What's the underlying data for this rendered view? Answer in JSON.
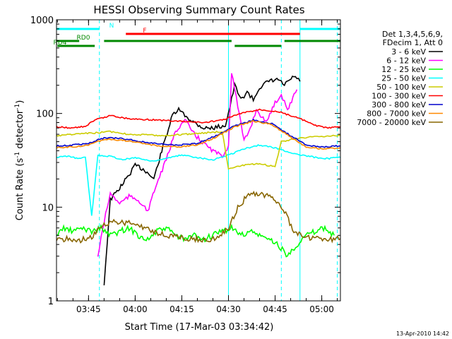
{
  "chart_data": {
    "type": "line",
    "title": "HESSI Observing Summary Count Rates",
    "xlabel": "Start Time (17-Mar-03 03:34:42)",
    "ylabel": "Count Rate (s",
    "ylabel_sup1": "-1",
    "ylabel_mid": " detector",
    "ylabel_sup2": "-1",
    "ylabel_end": ")",
    "y_scale": "log",
    "ylim": [
      1,
      1000
    ],
    "xlim": [
      "03:34:42",
      "05:06"
    ],
    "x_tick_labels": [
      "03:45",
      "04:00",
      "04:15",
      "04:30",
      "04:45",
      "05:00"
    ],
    "y_tick_labels": [
      "1",
      "10",
      "100",
      "1000"
    ],
    "legend": {
      "header": [
        "Det 1,3,4,5,6,9,",
        "FDecim 1, Att 0"
      ],
      "placement": "right-outside",
      "entries": [
        {
          "label": "3 - 6 keV",
          "color": "#000000"
        },
        {
          "label": "6 - 12 keV",
          "color": "#ff00ff"
        },
        {
          "label": "12 - 25 keV",
          "color": "#00ff00"
        },
        {
          "label": "25 - 50 keV",
          "color": "#00ffff"
        },
        {
          "label": "50 - 100 keV",
          "color": "#cccc00"
        },
        {
          "label": "100 - 300 keV",
          "color": "#ff0000"
        },
        {
          "label": "300 - 800 keV",
          "color": "#0000cc"
        },
        {
          "label": "800 - 7000 keV",
          "color": "#ff8800"
        },
        {
          "label": "7000 - 20000 keV",
          "color": "#886600"
        }
      ]
    },
    "flags": [
      {
        "label": "N",
        "color": "#00ffff",
        "segments": [
          [
            "03:34:42",
            "03:48:30"
          ],
          [
            "04:53",
            "05:06"
          ]
        ]
      },
      {
        "label": "F",
        "color": "#ff0000",
        "segments": [
          [
            "03:57",
            "04:53"
          ]
        ]
      },
      {
        "label": "RD0",
        "color": "#008800",
        "segments": [
          [
            "03:34:42",
            "03:42"
          ],
          [
            "03:50",
            "04:31"
          ],
          [
            "04:48",
            "05:06"
          ]
        ]
      },
      {
        "label": "RD4",
        "color": "#008800",
        "segments": [
          [
            "03:35",
            "03:47"
          ],
          [
            "04:32",
            "04:47"
          ]
        ]
      }
    ],
    "vlines": [
      {
        "x": "03:48:30",
        "style": "dashed",
        "color": "#00ffff"
      },
      {
        "x": "04:30",
        "style": "solid",
        "color": "#00ffff"
      },
      {
        "x": "04:47",
        "style": "dashed",
        "color": "#00ffff"
      },
      {
        "x": "04:53",
        "style": "solid",
        "color": "#00ffff"
      },
      {
        "x": "05:05",
        "style": "dashed",
        "color": "#00ffff"
      }
    ],
    "series": [
      {
        "name": "3 - 6 keV",
        "color": "#000000",
        "x": [
          "03:50",
          "03:52",
          "03:55",
          "03:58",
          "04:00",
          "04:03",
          "04:06",
          "04:09",
          "04:12",
          "04:14",
          "04:16",
          "04:19",
          "04:22",
          "04:25",
          "04:29",
          "04:30",
          "04:32",
          "04:34",
          "04:36",
          "04:38",
          "04:40",
          "04:43",
          "04:46",
          "04:48",
          "04:51",
          "04:53"
        ],
        "values": [
          1.5,
          12,
          16,
          22,
          28,
          25,
          20,
          45,
          95,
          110,
          95,
          80,
          70,
          70,
          75,
          100,
          200,
          140,
          170,
          140,
          190,
          220,
          230,
          200,
          250,
          220
        ]
      },
      {
        "name": "6 - 12 keV",
        "color": "#ff00ff",
        "x": [
          "03:48",
          "03:50",
          "03:52",
          "03:55",
          "03:58",
          "04:01",
          "04:04",
          "04:07",
          "04:10",
          "04:13",
          "04:16",
          "04:19",
          "04:22",
          "04:25",
          "04:28",
          "04:30",
          "04:31",
          "04:33",
          "04:35",
          "04:37",
          "04:39",
          "04:42",
          "04:45",
          "04:47",
          "04:49",
          "04:52"
        ],
        "values": [
          3,
          7,
          14,
          11,
          13,
          12,
          9,
          18,
          32,
          65,
          85,
          60,
          48,
          40,
          35,
          45,
          280,
          120,
          50,
          70,
          110,
          80,
          130,
          160,
          110,
          180
        ]
      },
      {
        "name": "12 - 25 keV",
        "color": "#00ff00",
        "x": [
          "03:34:42",
          "03:37",
          "03:40",
          "03:43",
          "03:46",
          "03:49",
          "03:52",
          "03:55",
          "03:58",
          "04:01",
          "04:04",
          "04:07",
          "04:10",
          "04:13",
          "04:16",
          "04:19",
          "04:22",
          "04:25",
          "04:28",
          "04:31",
          "04:34",
          "04:37",
          "04:40",
          "04:43",
          "04:46",
          "04:49",
          "04:52",
          "04:55",
          "04:58",
          "05:01",
          "05:04"
        ],
        "values": [
          5,
          6,
          5.5,
          6,
          5.5,
          6,
          5,
          5.5,
          6,
          5,
          4.5,
          5.5,
          6,
          5,
          4.5,
          5,
          4.5,
          5,
          5.5,
          6,
          5,
          5.5,
          5,
          4.5,
          4,
          3,
          4,
          5,
          5.5,
          6,
          5
        ]
      },
      {
        "name": "25 - 50 keV",
        "color": "#00ffff",
        "x": [
          "03:34:42",
          "03:38",
          "03:42",
          "03:44",
          "03:46",
          "03:48",
          "03:52",
          "03:56",
          "04:00",
          "04:05",
          "04:10",
          "04:15",
          "04:20",
          "04:25",
          "04:30",
          "04:35",
          "04:40",
          "04:45",
          "04:48",
          "04:53",
          "04:58",
          "05:02",
          "05:06"
        ],
        "values": [
          34,
          35,
          33,
          34,
          8,
          36,
          35,
          32,
          34,
          31,
          33,
          36,
          34,
          32,
          36,
          42,
          46,
          43,
          40,
          36,
          34,
          33,
          34
        ]
      },
      {
        "name": "50 - 100 keV",
        "color": "#cccc00",
        "x": [
          "03:34:42",
          "03:40",
          "03:47",
          "03:52",
          "03:58",
          "04:04",
          "04:10",
          "04:16",
          "04:22",
          "04:28",
          "04:30",
          "04:35",
          "04:40",
          "04:45",
          "04:47",
          "04:53",
          "05:00",
          "05:06"
        ],
        "values": [
          58,
          60,
          62,
          64,
          60,
          59,
          58,
          60,
          62,
          64,
          26,
          28,
          29,
          27,
          50,
          55,
          57,
          58
        ]
      },
      {
        "name": "100 - 300 keV",
        "color": "#ff0000",
        "x": [
          "03:34:42",
          "03:40",
          "03:44",
          "03:47",
          "03:52",
          "03:58",
          "04:04",
          "04:10",
          "04:16",
          "04:22",
          "04:28",
          "04:34",
          "04:40",
          "04:46",
          "04:50",
          "04:53",
          "04:58",
          "05:02",
          "05:06"
        ],
        "values": [
          72,
          70,
          73,
          85,
          95,
          88,
          86,
          84,
          82,
          80,
          85,
          100,
          110,
          105,
          95,
          88,
          74,
          70,
          72
        ]
      },
      {
        "name": "300 - 800 keV",
        "color": "#0000cc",
        "x": [
          "03:34:42",
          "03:40",
          "03:45",
          "03:50",
          "03:56",
          "04:02",
          "04:08",
          "04:14",
          "04:20",
          "04:26",
          "04:32",
          "04:38",
          "04:44",
          "04:50",
          "04:55",
          "05:00",
          "05:06"
        ],
        "values": [
          45,
          46,
          48,
          55,
          54,
          50,
          47,
          46,
          48,
          58,
          74,
          85,
          78,
          58,
          46,
          44,
          45
        ]
      },
      {
        "name": "800 - 7000 keV",
        "color": "#ff8800",
        "x": [
          "03:34:42",
          "03:40",
          "03:45",
          "03:50",
          "03:56",
          "04:02",
          "04:08",
          "04:14",
          "04:20",
          "04:26",
          "04:32",
          "04:38",
          "04:44",
          "04:50",
          "04:55",
          "05:00",
          "05:06"
        ],
        "values": [
          43,
          44,
          46,
          53,
          52,
          48,
          45,
          44,
          46,
          56,
          72,
          83,
          76,
          56,
          44,
          42,
          43
        ]
      },
      {
        "name": "7000 - 20000 keV",
        "color": "#886600",
        "x": [
          "03:34:42",
          "03:38",
          "03:42",
          "03:46",
          "03:50",
          "03:54",
          "03:58",
          "04:02",
          "04:06",
          "04:10",
          "04:14",
          "04:18",
          "04:22",
          "04:26",
          "04:30",
          "04:33",
          "04:36",
          "04:39",
          "04:42",
          "04:45",
          "04:48",
          "04:51",
          "04:54",
          "04:58",
          "05:02",
          "05:06"
        ],
        "values": [
          4.5,
          4.6,
          4.4,
          4.8,
          6.5,
          7,
          6.8,
          6.2,
          5.5,
          5,
          4.8,
          4.6,
          4.5,
          4.6,
          6,
          10,
          13,
          14,
          13.5,
          12,
          9,
          5.5,
          4.8,
          4.6,
          4.5,
          4.6
        ]
      }
    ]
  },
  "footer": {
    "date": "13-Apr-2010 14:42"
  }
}
